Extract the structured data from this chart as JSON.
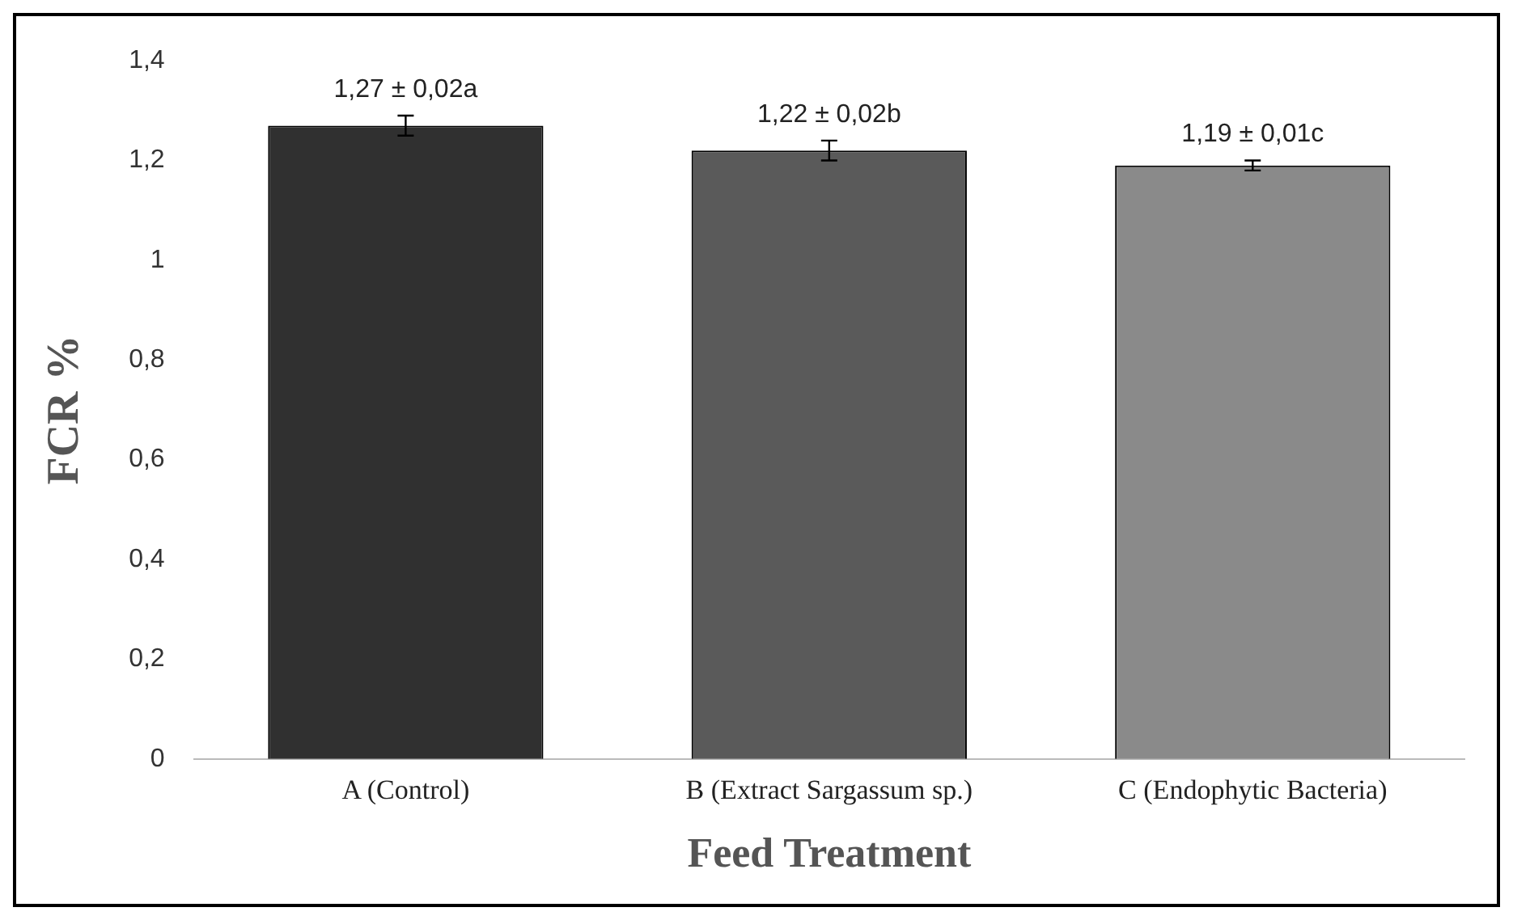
{
  "chart_data": {
    "type": "bar",
    "xlabel": "Feed Treatment",
    "ylabel": "FCR %",
    "categories": [
      "A (Control)",
      "B (Extract Sargassum sp.)",
      "C (Endophytic Bacteria)"
    ],
    "values": [
      1.27,
      1.22,
      1.19
    ],
    "colors": [
      "#303030",
      "#5a5a5a",
      "#8a8a8a"
    ],
    "errors": [
      0.02,
      0.02,
      0.01
    ],
    "value_labels": [
      "1,27 ± 0,02a",
      "1,22 ± 0,02b",
      "1,19 ± 0,01c"
    ],
    "ylim": [
      0,
      1.4
    ],
    "yticks": [
      0,
      {
        "value": 0.2,
        "label": "0,2"
      },
      {
        "value": 0.4,
        "label": "0,4"
      },
      {
        "value": 0.6,
        "label": "0,6"
      },
      {
        "value": 0.8,
        "label": "0,8"
      },
      1,
      {
        "value": 1.2,
        "label": "1,2"
      },
      {
        "value": 1.4,
        "label": "1,4"
      }
    ],
    "grid": false,
    "legend": false
  }
}
